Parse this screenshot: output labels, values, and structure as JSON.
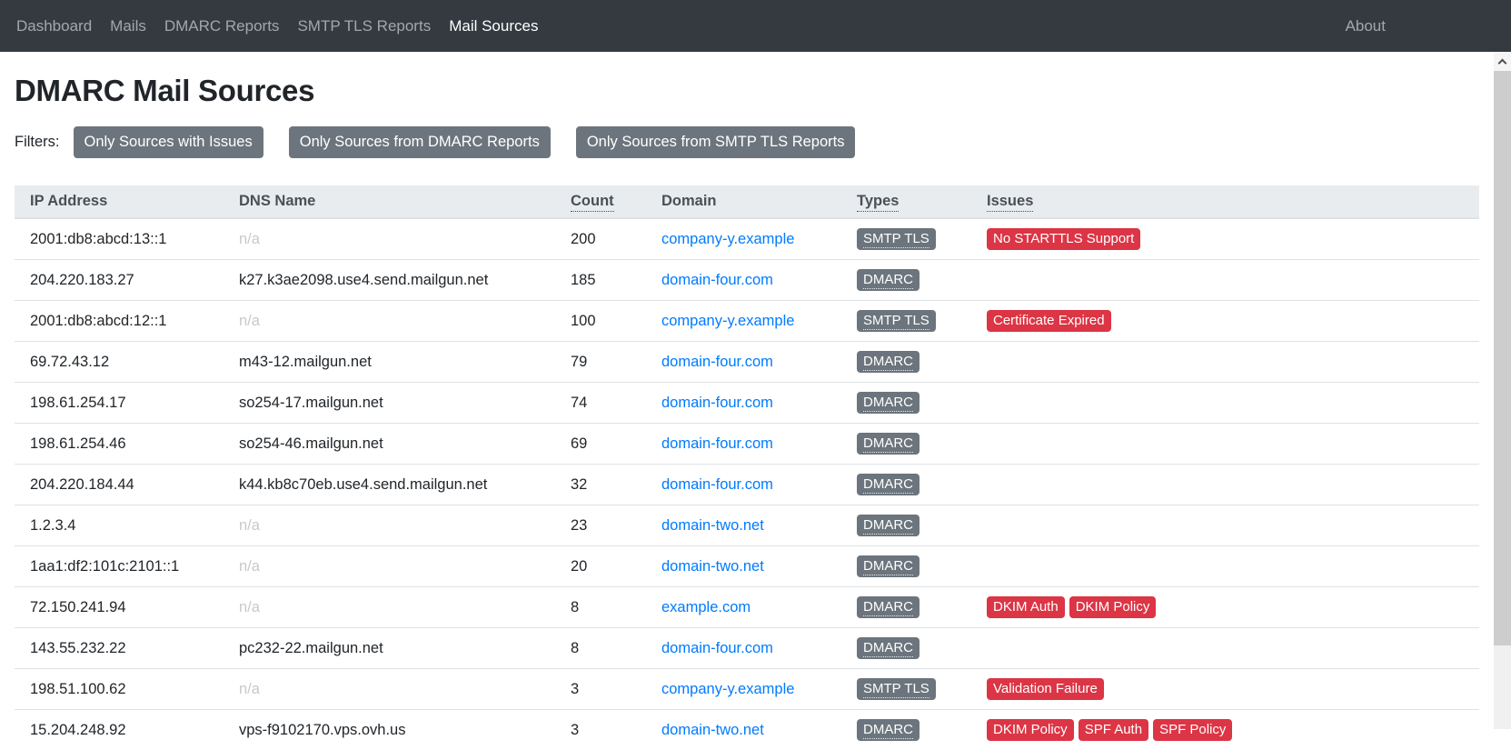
{
  "navbar": {
    "items": [
      {
        "label": "Dashboard",
        "active": false
      },
      {
        "label": "Mails",
        "active": false
      },
      {
        "label": "DMARC Reports",
        "active": false
      },
      {
        "label": "SMTP TLS Reports",
        "active": false
      },
      {
        "label": "Mail Sources",
        "active": true
      }
    ],
    "about": {
      "label": "About"
    }
  },
  "page": {
    "title": "DMARC Mail Sources"
  },
  "filters": {
    "label": "Filters:",
    "buttons": [
      {
        "label": "Only Sources with Issues"
      },
      {
        "label": "Only Sources from DMARC Reports"
      },
      {
        "label": "Only Sources from SMTP TLS Reports"
      }
    ]
  },
  "table": {
    "columns": [
      {
        "label": "IP Address",
        "sortable": false
      },
      {
        "label": "DNS Name",
        "sortable": false
      },
      {
        "label": "Count",
        "sortable": true
      },
      {
        "label": "Domain",
        "sortable": false
      },
      {
        "label": "Types",
        "sortable": true
      },
      {
        "label": "Issues",
        "sortable": true
      }
    ],
    "rows": [
      {
        "ip": "2001:db8:abcd:13::1",
        "dns": "n/a",
        "dns_na": true,
        "count": "200",
        "domain": "company-y.example",
        "types": [
          "SMTP TLS"
        ],
        "issues": [
          "No STARTTLS Support"
        ]
      },
      {
        "ip": "204.220.183.27",
        "dns": "k27.k3ae2098.use4.send.mailgun.net",
        "dns_na": false,
        "count": "185",
        "domain": "domain-four.com",
        "types": [
          "DMARC"
        ],
        "issues": []
      },
      {
        "ip": "2001:db8:abcd:12::1",
        "dns": "n/a",
        "dns_na": true,
        "count": "100",
        "domain": "company-y.example",
        "types": [
          "SMTP TLS"
        ],
        "issues": [
          "Certificate Expired"
        ]
      },
      {
        "ip": "69.72.43.12",
        "dns": "m43-12.mailgun.net",
        "dns_na": false,
        "count": "79",
        "domain": "domain-four.com",
        "types": [
          "DMARC"
        ],
        "issues": []
      },
      {
        "ip": "198.61.254.17",
        "dns": "so254-17.mailgun.net",
        "dns_na": false,
        "count": "74",
        "domain": "domain-four.com",
        "types": [
          "DMARC"
        ],
        "issues": []
      },
      {
        "ip": "198.61.254.46",
        "dns": "so254-46.mailgun.net",
        "dns_na": false,
        "count": "69",
        "domain": "domain-four.com",
        "types": [
          "DMARC"
        ],
        "issues": []
      },
      {
        "ip": "204.220.184.44",
        "dns": "k44.kb8c70eb.use4.send.mailgun.net",
        "dns_na": false,
        "count": "32",
        "domain": "domain-four.com",
        "types": [
          "DMARC"
        ],
        "issues": []
      },
      {
        "ip": "1.2.3.4",
        "dns": "n/a",
        "dns_na": true,
        "count": "23",
        "domain": "domain-two.net",
        "types": [
          "DMARC"
        ],
        "issues": []
      },
      {
        "ip": "1aa1:df2:101c:2101::1",
        "dns": "n/a",
        "dns_na": true,
        "count": "20",
        "domain": "domain-two.net",
        "types": [
          "DMARC"
        ],
        "issues": []
      },
      {
        "ip": "72.150.241.94",
        "dns": "n/a",
        "dns_na": true,
        "count": "8",
        "domain": "example.com",
        "types": [
          "DMARC"
        ],
        "issues": [
          "DKIM Auth",
          "DKIM Policy"
        ]
      },
      {
        "ip": "143.55.232.22",
        "dns": "pc232-22.mailgun.net",
        "dns_na": false,
        "count": "8",
        "domain": "domain-four.com",
        "types": [
          "DMARC"
        ],
        "issues": []
      },
      {
        "ip": "198.51.100.62",
        "dns": "n/a",
        "dns_na": true,
        "count": "3",
        "domain": "company-y.example",
        "types": [
          "SMTP TLS"
        ],
        "issues": [
          "Validation Failure"
        ]
      },
      {
        "ip": "15.204.248.92",
        "dns": "vps-f9102170.vps.ovh.us",
        "dns_na": false,
        "count": "3",
        "domain": "domain-two.net",
        "types": [
          "DMARC"
        ],
        "issues": [
          "DKIM Policy",
          "SPF Auth",
          "SPF Policy"
        ]
      }
    ]
  },
  "colors": {
    "navbar_bg": "#343a40",
    "link_accent": "#007bff",
    "type_badge_bg": "#6c757d",
    "issue_badge_bg": "#dc3545",
    "filter_button_bg": "#6c757d",
    "table_header_bg": "#e9ecef"
  }
}
